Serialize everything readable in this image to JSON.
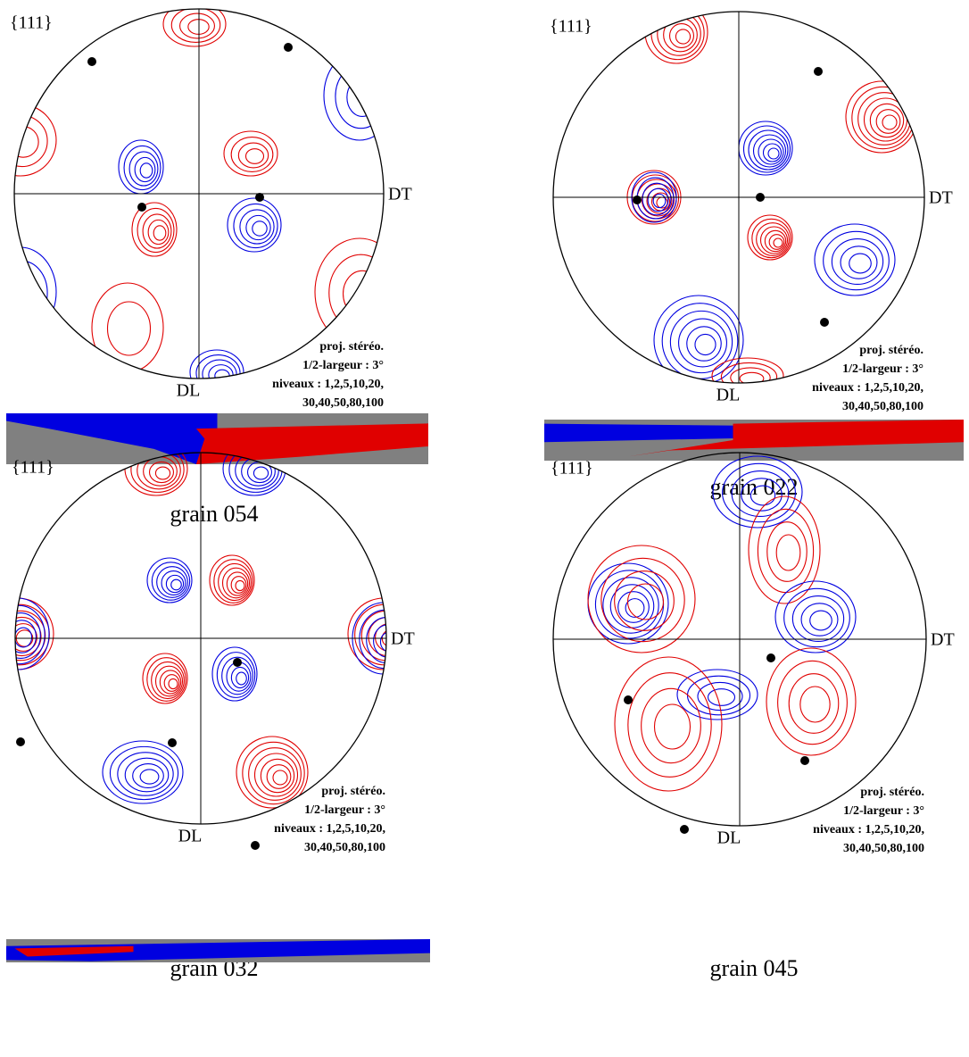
{
  "panels": [
    {
      "label": "{111}",
      "axis_right": "DT",
      "axis_bottom": "DL",
      "legend": [
        "proj. stéréo.",
        "1/2-largeur : 3°",
        "niveaux : 1,2,5,10,20,",
        "30,40,50,80,100"
      ],
      "caption": "grain 054"
    },
    {
      "label": "{111}",
      "axis_right": "DT",
      "axis_bottom": "DL",
      "legend": [
        "proj. stéréo.",
        "1/2-largeur : 3°",
        "niveaux : 1,2,5,10,20,",
        "30,40,50,80,100"
      ],
      "caption": "grain 022"
    },
    {
      "label": "{111}",
      "axis_right": "DT",
      "axis_bottom": "DL",
      "legend": [
        "proj. stéréo.",
        "1/2-largeur : 3°",
        "niveaux : 1,2,5,10,20,",
        "30,40,50,80,100"
      ],
      "caption": "grain 032"
    },
    {
      "label": "{111}",
      "axis_right": "DT",
      "axis_bottom": "DL",
      "legend": [
        "proj. stéréo.",
        "1/2-largeur : 3°",
        "niveaux : 1,2,5,10,20,",
        "30,40,50,80,100"
      ],
      "caption": "grain 045"
    }
  ]
}
